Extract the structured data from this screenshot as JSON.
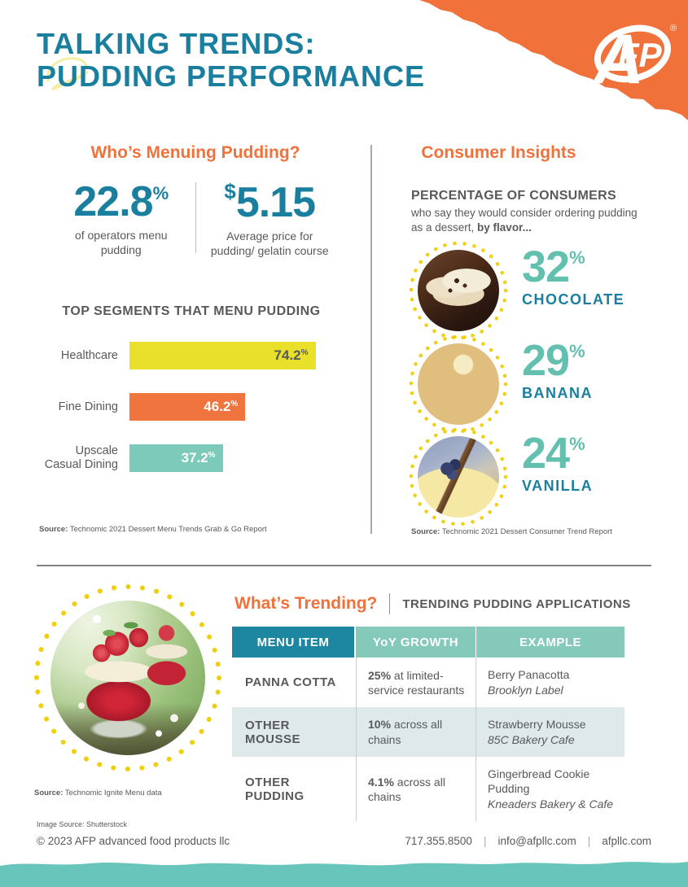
{
  "logo": {
    "a": "A",
    "fp": "FP",
    "reg": "®"
  },
  "header": {
    "title_line1": "TALKING TRENDS:",
    "title_line2": "PUDDING PERFORMANCE"
  },
  "units": {
    "percent": "%",
    "dollar": "$"
  },
  "menuing": {
    "heading": "Who’s Menuing Pudding?",
    "stat1": {
      "value": "22.8",
      "label_line1": "of operators menu",
      "label_line2": "pudding"
    },
    "stat2": {
      "value": "5.15",
      "label_line1": "Average price for",
      "label_line2": "pudding/ gelatin course"
    },
    "source_label": "Source:",
    "source_text": " Technomic 2021 Dessert Menu Trends Grab & Go Report"
  },
  "chart_data": {
    "type": "bar",
    "orientation": "horizontal",
    "title": "TOP SEGMENTS THAT MENU PUDDING",
    "categories": [
      "Healthcare",
      "Fine Dining",
      "Upscale Casual Dining"
    ],
    "values": [
      74.2,
      46.2,
      37.2
    ],
    "labels": [
      "74.2",
      "46.2",
      "37.2"
    ],
    "unit": "%",
    "bar_colors": [
      "#e9e02b",
      "#f0743e",
      "#7dcaba"
    ],
    "xlim": [
      0,
      100
    ],
    "grid": false,
    "legend": false
  },
  "insights": {
    "heading": "Consumer Insights",
    "intro_bold": "PERCENTAGE OF CONSUMERS",
    "intro_line1": "who say they would consider ordering pudding",
    "intro_line2_regular": "as a dessert, ",
    "intro_line2_bold": "by flavor...",
    "flavors": [
      {
        "value": "32",
        "name": "CHOCOLATE"
      },
      {
        "value": "29",
        "name": "BANANA"
      },
      {
        "value": "24",
        "name": "VANILLA"
      }
    ],
    "source_label": "Source:",
    "source_text": " Technomic 2021 Dessert Consumer Trend Report"
  },
  "trending": {
    "heading": "What’s Trending?",
    "subheading": "TRENDING PUDDING APPLICATIONS",
    "columns": [
      "MENU ITEM",
      "YoY GROWTH",
      "EXAMPLE"
    ],
    "rows": [
      {
        "item": "PANNA COTTA",
        "growth_bold": "25%",
        "growth_rest": " at limited-service restaurants",
        "example_name": "Berry Panacotta",
        "example_brand": "Brooklyn Label"
      },
      {
        "item": "OTHER MOUSSE",
        "growth_bold": "10%",
        "growth_rest": " across all chains",
        "example_name": "Strawberry Mousse",
        "example_brand": "85C Bakery Cafe"
      },
      {
        "item": "OTHER PUDDING",
        "growth_bold": "4.1%",
        "growth_rest": " across all chains",
        "example_name": "Gingerbread Cookie Pudding",
        "example_brand": "Kneaders Bakery & Cafe"
      }
    ],
    "source_label": "Source:",
    "source_text": " Technomic Ignite Menu data"
  },
  "footer": {
    "image_source": "Image Source: Shutterstock",
    "copyright": "© 2023 AFP advanced food products llc",
    "phone": "717.355.8500",
    "email": "info@afpllc.com",
    "website": "afpllc.com",
    "separator": "|"
  },
  "colors": {
    "teal": "#1a7f9e",
    "orange": "#f0713a",
    "yellow_bar": "#e9e02b",
    "orange_bar": "#f0743e",
    "seafoam_bar": "#7dcaba",
    "seafoam_number": "#63c0af",
    "dot_yellow": "#f0cf0e",
    "table_header_teal": "#1d87a1",
    "table_header_seafoam": "#85c9ba",
    "row_alt_bg": "#dfe9ea",
    "footer_band": "#67c5bb",
    "text_gray": "#58595b"
  }
}
